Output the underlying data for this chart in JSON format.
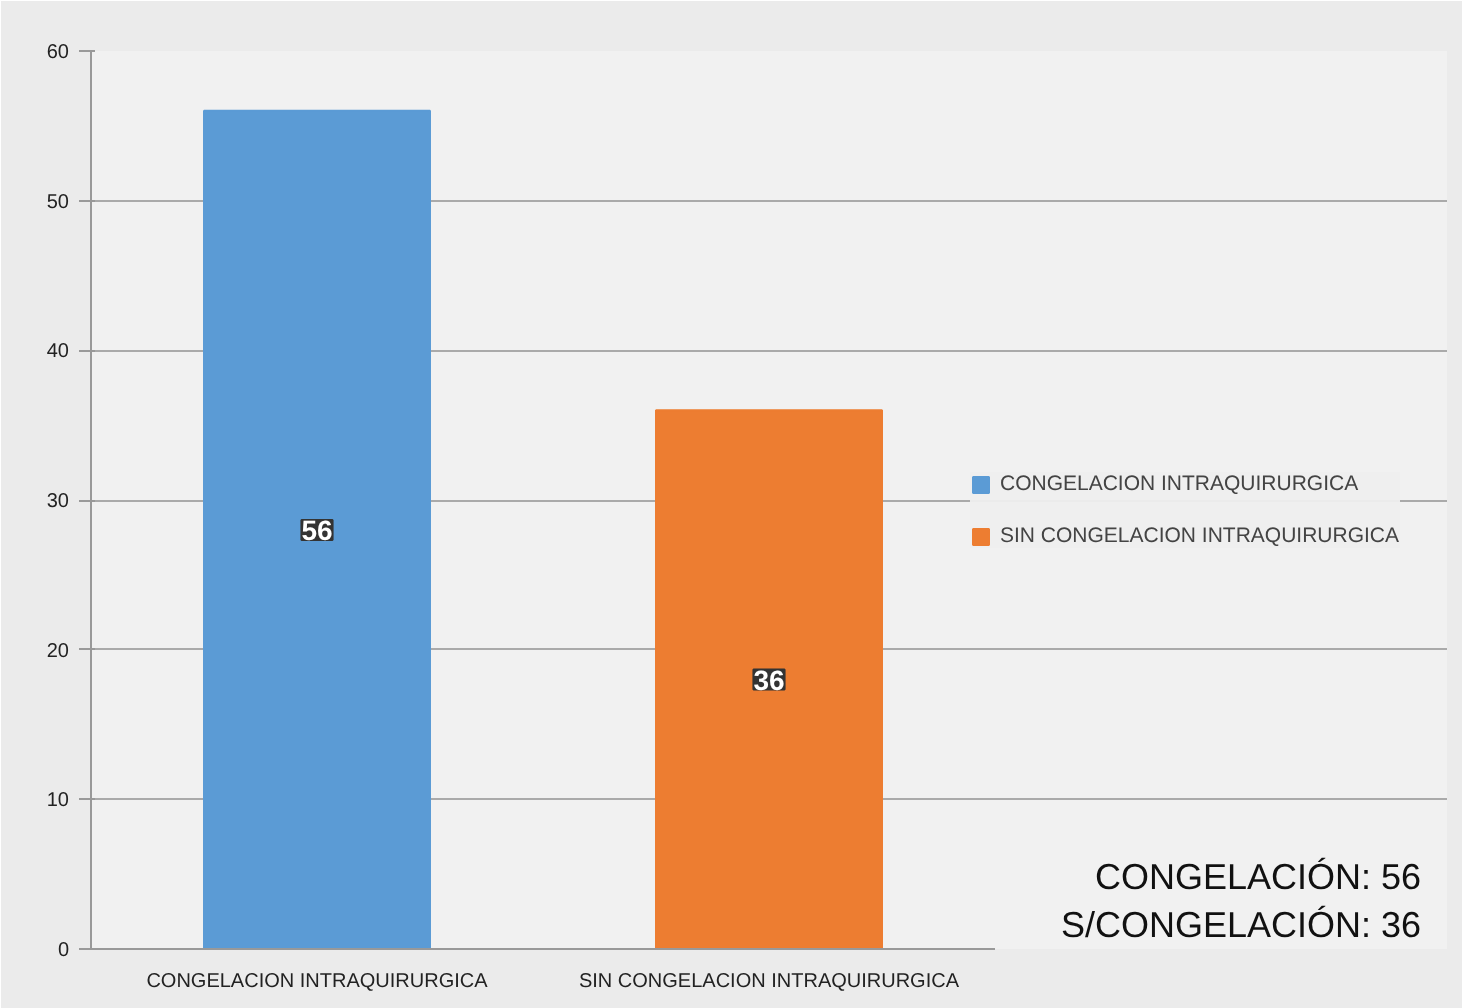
{
  "chart_data": {
    "type": "bar",
    "categories": [
      "CONGELACION INTRAQUIRURGICA",
      "SIN CONGELACION INTRAQUIRURGICA"
    ],
    "series": [
      {
        "name": "CONGELACION INTRAQUIRURGICA",
        "color": "#5b9bd5",
        "values": [
          56,
          null
        ]
      },
      {
        "name": "SIN CONGELACION INTRAQUIRURGICA",
        "color": "#ed7d31",
        "values": [
          null,
          36
        ]
      }
    ],
    "ylim": [
      0,
      60
    ],
    "yticks": [
      0,
      10,
      20,
      30,
      40,
      50,
      60
    ],
    "grid": "y",
    "legend": "right",
    "data_labels": true,
    "annotations": [
      "CONGELACIÓN: 56",
      "S/CONGELACIÓN: 36"
    ]
  }
}
